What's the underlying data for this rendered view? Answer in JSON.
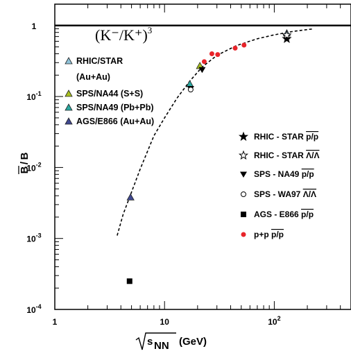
{
  "chart_data": {
    "type": "scatter",
    "xscale": "log",
    "yscale": "log",
    "xlim": [
      1,
      500
    ],
    "ylim": [
      0.0001,
      2
    ],
    "xlabel": "(GeV)",
    "xlabel_sqrt_base": "s",
    "xlabel_subscript": "NN",
    "ylabel_over": "B",
    "ylabel_base": "B",
    "formula": {
      "text": "(K⁻/K⁺)",
      "exponent": "3"
    },
    "x_ticks": [
      {
        "value": 1,
        "label": "1"
      },
      {
        "value": 10,
        "label": "10"
      },
      {
        "value": 100,
        "label": "10",
        "exp": "2"
      }
    ],
    "y_ticks": [
      {
        "value": 1,
        "label": "1",
        "exp": ""
      },
      {
        "value": 0.1,
        "label": "10",
        "exp": "-1"
      },
      {
        "value": 0.01,
        "label": "10",
        "exp": "-2"
      },
      {
        "value": 0.001,
        "label": "10",
        "exp": "-3"
      },
      {
        "value": 0.0001,
        "label": "10",
        "exp": "-4"
      }
    ],
    "reference_line": 1,
    "curve": [
      [
        3.7,
        0.0011
      ],
      [
        4.2,
        0.0022
      ],
      [
        5,
        0.0045
      ],
      [
        6,
        0.0095
      ],
      [
        8,
        0.028
      ],
      [
        10,
        0.05
      ],
      [
        13,
        0.095
      ],
      [
        17,
        0.165
      ],
      [
        22,
        0.26
      ],
      [
        30,
        0.38
      ],
      [
        45,
        0.52
      ],
      [
        70,
        0.65
      ],
      [
        100,
        0.74
      ],
      [
        150,
        0.83
      ],
      [
        230,
        0.9
      ]
    ],
    "series_kkratio": [
      {
        "name": "RHIC/STAR",
        "name2": "(Au+Au)",
        "color": "#8fc2d8",
        "points": [
          [
            130,
            0.78
          ]
        ]
      },
      {
        "name": "SPS/NA44 (S+S)",
        "color": "#a8c020",
        "points": [
          [
            21,
            0.27
          ]
        ]
      },
      {
        "name": "SPS/NA49 (Pb+Pb)",
        "color": "#2aa8a0",
        "points": [
          [
            17,
            0.15
          ]
        ]
      },
      {
        "name": "AGS/E866 (Au+Au)",
        "color": "#404890",
        "points": [
          [
            4.9,
            0.0038
          ]
        ]
      }
    ],
    "series_measured": [
      {
        "name": "RHIC - STAR",
        "ratio": "p/p",
        "marker": "star-filled",
        "points": [
          [
            130,
            0.65
          ]
        ]
      },
      {
        "name": "RHIC - STAR",
        "ratio": "Λ/Λ",
        "marker": "star-open",
        "points": [
          [
            130,
            0.73
          ]
        ]
      },
      {
        "name": "SPS - NA49",
        "ratio": "p/p",
        "marker": "triangle-down",
        "points": [
          [
            17.3,
            0.13
          ],
          [
            22,
            0.24
          ]
        ]
      },
      {
        "name": "SPS - WA97",
        "ratio": "Λ/Λ",
        "marker": "circle-open",
        "points": [
          [
            17.3,
            0.125
          ]
        ]
      },
      {
        "name": "AGS - E866",
        "ratio": "p/p",
        "marker": "square",
        "points": [
          [
            4.8,
            0.00025
          ]
        ]
      },
      {
        "name": "p+p",
        "ratio": "p/p",
        "marker": "dot-red",
        "points": [
          [
            23,
            0.31
          ],
          [
            27,
            0.4
          ],
          [
            30.5,
            0.39
          ],
          [
            44,
            0.48
          ],
          [
            53,
            0.53
          ]
        ]
      }
    ]
  }
}
